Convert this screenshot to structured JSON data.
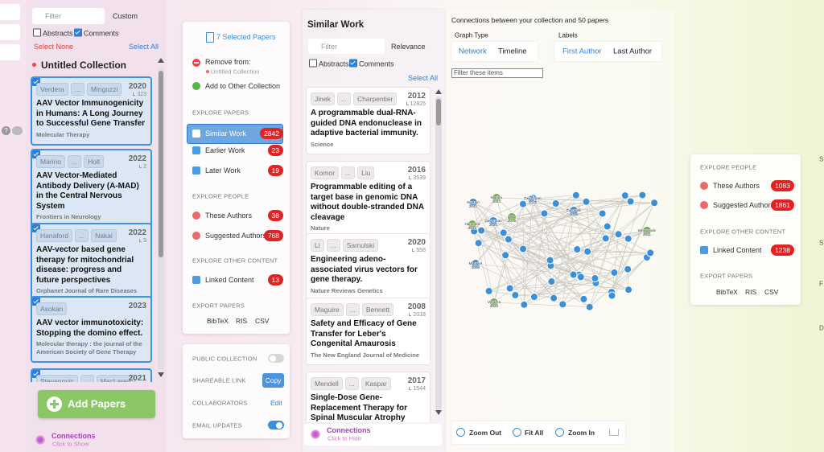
{
  "side_strip": {
    "help_icon": "?"
  },
  "left_panel": {
    "filter_placeholder": "Filter",
    "sort": "Custom",
    "abstracts": "Abstracts",
    "comments": "Comments",
    "select_none": "Select None",
    "select_all": "Select All",
    "collection_title": "Untitled Collection",
    "author_separator": "...",
    "papers": [
      {
        "first_author": "Verdera",
        "last_author": "Mingozzi",
        "year": 2020,
        "citations": 323,
        "title": "AAV Vector Immunogenicity in Humans: A Long Journey to Successful Gene Transfer",
        "journal": "Molecular Therapy"
      },
      {
        "first_author": "Marino",
        "last_author": "Holt",
        "year": 2022,
        "citations": 2,
        "title": "AAV Vector-Mediated Antibody Delivery (A-MAD) in the Central Nervous System",
        "journal": "Frontiers in Neurology"
      },
      {
        "first_author": "Hanaford",
        "last_author": "Nakai",
        "year": 2022,
        "citations": 9,
        "title": "AAV-vector based gene therapy for mitochondrial disease: progress and future perspectives",
        "journal": "Orphanet Journal of Rare Diseases"
      },
      {
        "first_author": "Asokan",
        "year": 2023,
        "title": "AAV vector immunotoxicity: Stopping the domino effect.",
        "journal": "Molecular therapy : the journal of the American Society of Gene Therapy"
      },
      {
        "first_author": "Stevanovic",
        "last_author": "MacLaren",
        "year": 2021
      }
    ],
    "add_papers": "Add Papers",
    "connections": "Connections",
    "connections_hint": "Click to Show"
  },
  "actions_panel": {
    "selected": "7 Selected Papers",
    "remove_from": "Remove from:",
    "remove_target": "Untitled Collection",
    "add_to_other": "Add to Other Collection",
    "explore_papers": "EXPLORE PAPERS",
    "paper_links": [
      {
        "label": "Similar Work",
        "count": 2842
      },
      {
        "label": "Earlier Work",
        "count": 23
      },
      {
        "label": "Later Work",
        "count": 19
      }
    ],
    "explore_people": "EXPLORE PEOPLE",
    "people_links": [
      {
        "label": "These Authors",
        "count": 38
      },
      {
        "label": "Suggested Authors",
        "count": 768
      }
    ],
    "explore_other": "EXPLORE OTHER CONTENT",
    "other_links": [
      {
        "label": "Linked Content",
        "count": 13
      }
    ],
    "export": "EXPORT PAPERS",
    "export_formats": [
      "BibTeX",
      "RIS",
      "CSV"
    ]
  },
  "sharing_panel": {
    "public_collection": "PUBLIC COLLECTION",
    "shareable_link": "SHAREABLE LINK",
    "copy": "Copy",
    "collaborators": "COLLABORATORS",
    "edit": "Edit",
    "email_updates": "EMAIL UPDATES"
  },
  "similar_panel": {
    "title": "Similar Work",
    "filter_placeholder": "Filter",
    "sort": "Relevance",
    "abstracts": "Abstracts",
    "comments": "Comments",
    "select_all": "Select All",
    "author_separator": "...",
    "papers": [
      {
        "first_author": "Jinek",
        "last_author": "Charpentier",
        "year": 2012,
        "citations": 12825,
        "title": "A programmable dual-RNA-guided DNA endonuclease in adaptive bacterial immunity.",
        "journal": "Science"
      },
      {
        "first_author": "Komor",
        "last_author": "Liu",
        "year": 2016,
        "citations": 3539,
        "title": "Programmable editing of a target base in genomic DNA without double-stranded DNA cleavage",
        "journal": "Nature"
      },
      {
        "first_author": "Li",
        "last_author": "Samulski",
        "year": 2020,
        "citations": 558,
        "title": "Engineering adeno-associated virus vectors for gene therapy.",
        "journal": "Nature Reviews Genetics"
      },
      {
        "first_author": "Maguire",
        "last_author": "Bennett",
        "year": 2008,
        "citations": 2018,
        "title": "Safety and Efficacy of Gene Transfer for Leber's Congenital Amaurosis",
        "journal": "The New England Journal of Medicine"
      },
      {
        "first_author": "Mendell",
        "last_author": "Kaspar",
        "year": 2017,
        "citations": 1544,
        "title": "Single-Dose Gene-Replacement Therapy for Spinal Muscular Atrophy"
      }
    ],
    "connections": "Connections",
    "connections_hint": "Click to Hide"
  },
  "graph_panel": {
    "title": "Connections between your collection and 50 papers",
    "graph_type_label": "Graph Type",
    "graph_types": [
      "Network",
      "Timeline"
    ],
    "labels_label": "Labels",
    "label_options": [
      "First Author",
      "Last Author"
    ],
    "filter_placeholder": "Filter these items",
    "nodes": [
      {
        "author": "Kuzmin",
        "year": 2021
      },
      {
        "author": "Marino",
        "year": 2022
      },
      {
        "author": "Deverman",
        "year": 2016
      },
      {
        "author": "Wu",
        "year": 2016
      },
      {
        "author": "Hanaford",
        "year": 2022
      },
      {
        "author": "Zincarelli",
        "year": 2008
      },
      {
        "author": "Stevanovic",
        "year": 2021
      },
      {
        "author": "Maguire",
        "year": 2008
      },
      {
        "author": "Verdera",
        "year": 2020
      },
      {
        "author": "Deverman",
        "year": 2020
      }
    ],
    "zoom_out": "Zoom Out",
    "fit_all": "Fit All",
    "zoom_in": "Zoom In"
  },
  "people_panel": {
    "explore_people": "EXPLORE PEOPLE",
    "people_links": [
      {
        "label": "These Authors",
        "count": 1083
      },
      {
        "label": "Suggested Authors",
        "count": 1861
      }
    ],
    "explore_other": "EXPLORE OTHER CONTENT",
    "other_links": [
      {
        "label": "Linked Content",
        "count": 1238
      }
    ],
    "export": "EXPORT PAPERS",
    "export_formats": [
      "BibTeX",
      "RIS",
      "CSV"
    ]
  },
  "right_edge_fragments": [
    "S",
    "S",
    "F",
    "D"
  ]
}
